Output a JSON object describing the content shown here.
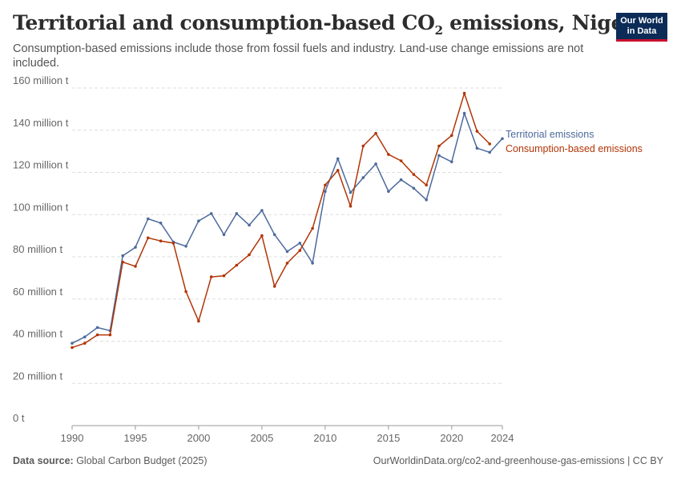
{
  "header": {
    "title_main": "Territorial and consumption-based CO",
    "title_sub": "2",
    "title_tail": " emissions, Nigeria",
    "subtitle": "Consumption-based emissions include those from fossil fuels and industry. Land-use change emissions are not included."
  },
  "logo": {
    "line1": "Our World",
    "line2": "in Data"
  },
  "footer": {
    "source_label": "Data source:",
    "source_text": " Global Carbon Budget (2025)",
    "credit": "OurWorldinData.org/co2-and-greenhouse-gas-emissions | CC BY"
  },
  "chart_data": {
    "type": "line",
    "y_ticks": [
      {
        "value": 0,
        "label": "0 t"
      },
      {
        "value": 20,
        "label": "20 million t"
      },
      {
        "value": 40,
        "label": "40 million t"
      },
      {
        "value": 60,
        "label": "60 million t"
      },
      {
        "value": 80,
        "label": "80 million t"
      },
      {
        "value": 100,
        "label": "100 million t"
      },
      {
        "value": 120,
        "label": "120 million t"
      },
      {
        "value": 140,
        "label": "140 million t"
      },
      {
        "value": 160,
        "label": "160 million t"
      }
    ],
    "x_ticks": [
      1990,
      1995,
      2000,
      2005,
      2010,
      2015,
      2020,
      2024
    ],
    "xlim": [
      1990,
      2024
    ],
    "ylim": [
      0,
      160
    ],
    "grid": true,
    "series": [
      {
        "name": "Territorial emissions",
        "color": "#4c6a9c",
        "x": [
          1990,
          1991,
          1992,
          1993,
          1994,
          1995,
          1996,
          1997,
          1998,
          1999,
          2000,
          2001,
          2002,
          2003,
          2004,
          2005,
          2006,
          2007,
          2008,
          2009,
          2010,
          2011,
          2012,
          2013,
          2014,
          2015,
          2016,
          2017,
          2018,
          2019,
          2020,
          2021,
          2022,
          2023,
          2024
        ],
        "y": [
          39,
          42,
          46.5,
          45,
          80.5,
          84.5,
          98,
          96,
          87,
          85,
          97,
          100.5,
          90.5,
          100.5,
          95,
          102,
          90.5,
          82.5,
          86.5,
          77,
          111,
          126.5,
          110.5,
          117.5,
          124,
          111,
          116.5,
          112.5,
          107,
          128,
          125,
          148,
          131.5,
          129.5,
          136
        ]
      },
      {
        "name": "Consumption-based emissions",
        "color": "#b13507",
        "x": [
          1990,
          1991,
          1992,
          1993,
          1994,
          1995,
          1996,
          1997,
          1998,
          1999,
          2000,
          2001,
          2002,
          2003,
          2004,
          2005,
          2006,
          2007,
          2008,
          2009,
          2010,
          2011,
          2012,
          2013,
          2014,
          2015,
          2016,
          2017,
          2018,
          2019,
          2020,
          2021,
          2022,
          2023
        ],
        "y": [
          37,
          39,
          43,
          43,
          77.5,
          75.5,
          89,
          87.5,
          86.5,
          63.5,
          49.5,
          70.5,
          71,
          76,
          81,
          90,
          66,
          77,
          83,
          93.5,
          114,
          121,
          104,
          132.5,
          138.5,
          128.5,
          125.5,
          119,
          114,
          132.5,
          137.5,
          157.5,
          139.5,
          133.5
        ]
      }
    ]
  }
}
